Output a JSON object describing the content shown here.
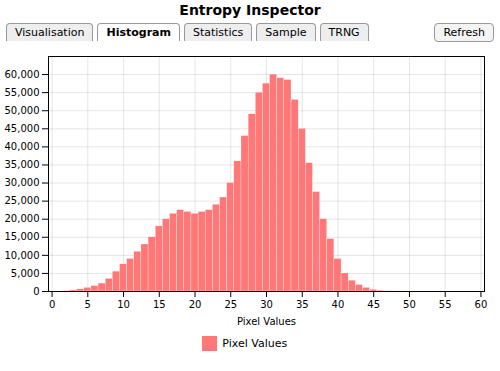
{
  "chart_data": {
    "type": "bar",
    "title": "Entropy Inspector",
    "annotations": [
      "Visualisation",
      "Histogram",
      "Statistics",
      "Sample",
      "TRNG",
      "Refresh"
    ],
    "xlabel": "Pixel Values",
    "x": [
      0,
      1,
      2,
      3,
      4,
      5,
      6,
      7,
      8,
      9,
      10,
      11,
      12,
      13,
      14,
      15,
      16,
      17,
      18,
      19,
      20,
      21,
      22,
      23,
      24,
      25,
      26,
      27,
      28,
      29,
      30,
      31,
      32,
      33,
      34,
      35,
      36,
      37,
      38,
      39,
      40,
      41,
      42,
      43,
      44,
      45,
      46,
      47,
      48,
      49,
      50,
      51,
      52,
      53,
      54,
      55,
      56,
      57,
      58,
      59,
      60
    ],
    "series": [
      {
        "name": "Pixel Values",
        "color": "#FF7777",
        "values": [
          0,
          0,
          100,
          300,
          600,
          1000,
          1500,
          2200,
          3500,
          5500,
          7500,
          9000,
          11000,
          13000,
          15000,
          18000,
          20000,
          21500,
          22500,
          22000,
          21500,
          22000,
          22500,
          24000,
          26000,
          30000,
          36000,
          43000,
          49000,
          55000,
          57500,
          60000,
          59000,
          58500,
          53000,
          45000,
          35500,
          27500,
          20000,
          14500,
          9000,
          5000,
          3000,
          1800,
          1000,
          500,
          250,
          100,
          50,
          20,
          10,
          5,
          2,
          1,
          0,
          0,
          0,
          0,
          0,
          0,
          0
        ]
      }
    ],
    "xlim": [
      -0.5,
      60.5
    ],
    "ylim": [
      0,
      65000
    ],
    "xticks": [
      0,
      5,
      10,
      15,
      20,
      25,
      30,
      35,
      40,
      45,
      50,
      55,
      60
    ],
    "yticks": [
      0,
      {
        "value": 5000,
        "label": "5,000"
      },
      {
        "value": 10000,
        "label": "10,000"
      },
      {
        "value": 15000,
        "label": "15,000"
      },
      {
        "value": 20000,
        "label": "20,000"
      },
      {
        "value": 25000,
        "label": "25,000"
      },
      {
        "value": 30000,
        "label": "30,000"
      },
      {
        "value": 35000,
        "label": "35,000"
      },
      {
        "value": 40000,
        "label": "40,000"
      },
      {
        "value": 45000,
        "label": "45,000"
      },
      {
        "value": 50000,
        "label": "50,000"
      },
      {
        "value": 55000,
        "label": "55,000"
      },
      {
        "value": 60000,
        "label": "60,000"
      }
    ],
    "grid": true
  }
}
